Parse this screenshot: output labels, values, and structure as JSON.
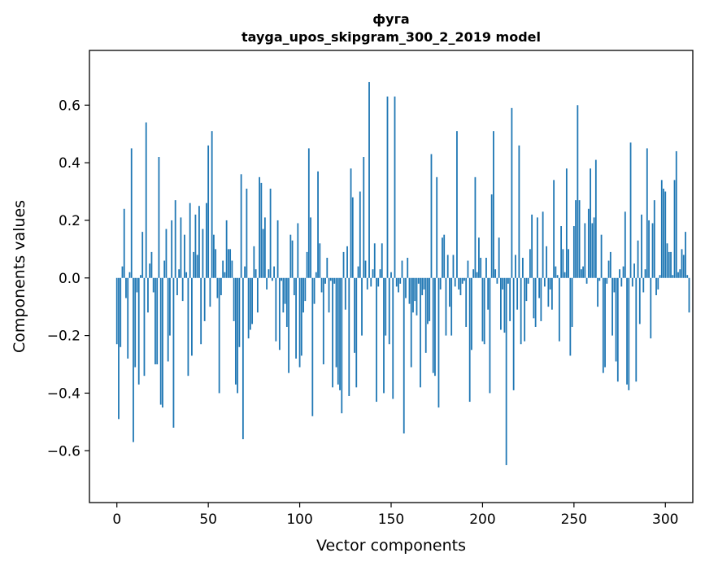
{
  "chart_data": {
    "type": "bar",
    "title": "фуга",
    "subtitle": "tayga_upos_skipgram_300_2_2019 model",
    "xlabel": "Vector components",
    "ylabel": "Components values",
    "xlim": [
      -15,
      315
    ],
    "ylim": [
      -0.78,
      0.79
    ],
    "xticks": [
      0,
      50,
      100,
      150,
      200,
      250,
      300
    ],
    "xtick_labels": [
      "0",
      "50",
      "100",
      "150",
      "200",
      "250",
      "300"
    ],
    "yticks": [
      -0.6,
      -0.4,
      -0.2,
      0.0,
      0.2,
      0.4,
      0.6
    ],
    "ytick_labels": [
      "−0.6",
      "−0.4",
      "−0.2",
      "0.0",
      "0.2",
      "0.4",
      "0.6"
    ],
    "bar_color": "#1f77b4",
    "grid": false,
    "values": [
      -0.23,
      -0.49,
      -0.24,
      0.04,
      0.24,
      -0.07,
      -0.28,
      0.02,
      0.45,
      -0.57,
      -0.31,
      -0.05,
      -0.37,
      0.01,
      0.16,
      -0.34,
      0.54,
      -0.12,
      0.05,
      0.09,
      -0.05,
      -0.3,
      -0.3,
      0.42,
      -0.44,
      -0.45,
      0.06,
      0.17,
      -0.29,
      -0.2,
      0.2,
      -0.52,
      0.27,
      -0.06,
      0.03,
      0.21,
      -0.08,
      0.15,
      0.02,
      -0.34,
      0.26,
      -0.27,
      0.09,
      0.22,
      0.08,
      0.25,
      -0.23,
      0.17,
      -0.15,
      0.26,
      0.46,
      -0.1,
      0.51,
      0.15,
      0.1,
      -0.07,
      -0.4,
      -0.06,
      0.06,
      0.02,
      0.2,
      0.1,
      0.1,
      0.06,
      -0.15,
      -0.37,
      -0.4,
      -0.24,
      0.36,
      -0.56,
      0.04,
      0.31,
      -0.21,
      -0.18,
      -0.16,
      0.11,
      0.03,
      -0.12,
      0.35,
      0.33,
      0.17,
      0.21,
      -0.04,
      0.03,
      0.31,
      -0.01,
      0.04,
      -0.22,
      0.2,
      -0.25,
      -0.01,
      -0.12,
      -0.09,
      -0.17,
      -0.33,
      0.15,
      0.13,
      -0.06,
      -0.28,
      0.19,
      -0.31,
      -0.27,
      -0.12,
      -0.08,
      0.09,
      0.45,
      0.21,
      -0.48,
      -0.09,
      0.02,
      0.37,
      0.12,
      -0.05,
      -0.3,
      -0.02,
      0.07,
      -0.12,
      -0.01,
      -0.38,
      -0.02,
      -0.31,
      -0.37,
      -0.39,
      -0.47,
      0.09,
      -0.11,
      0.11,
      -0.41,
      0.38,
      0.28,
      -0.26,
      -0.38,
      0.04,
      0.3,
      -0.2,
      0.42,
      0.06,
      -0.04,
      0.68,
      -0.03,
      0.03,
      0.12,
      -0.43,
      -0.03,
      0.03,
      0.12,
      -0.4,
      -0.2,
      0.63,
      -0.23,
      0.02,
      -0.42,
      0.63,
      -0.03,
      -0.05,
      -0.02,
      0.06,
      -0.54,
      -0.07,
      0.07,
      -0.09,
      -0.31,
      -0.12,
      -0.08,
      -0.13,
      -0.02,
      -0.38,
      -0.06,
      -0.04,
      -0.26,
      -0.16,
      -0.15,
      0.43,
      -0.33,
      -0.34,
      0.35,
      -0.45,
      -0.04,
      0.14,
      0.15,
      -0.2,
      0.08,
      -0.1,
      -0.2,
      0.08,
      -0.03,
      0.51,
      -0.04,
      -0.06,
      -0.02,
      -0.01,
      -0.17,
      0.06,
      -0.43,
      -0.25,
      0.03,
      0.35,
      0.02,
      0.14,
      0.07,
      -0.22,
      -0.23,
      0.07,
      -0.11,
      -0.4,
      0.29,
      0.51,
      0.03,
      -0.02,
      0.14,
      -0.18,
      -0.04,
      -0.19,
      -0.65,
      -0.02,
      -0.15,
      0.59,
      -0.39,
      0.08,
      -0.11,
      0.46,
      -0.23,
      0.07,
      -0.22,
      -0.08,
      -0.02,
      0.1,
      0.22,
      -0.14,
      -0.17,
      0.21,
      -0.07,
      -0.15,
      0.23,
      -0.03,
      0.11,
      -0.1,
      -0.04,
      -0.11,
      0.34,
      0.04,
      0.01,
      -0.22,
      0.18,
      0.1,
      0.02,
      0.38,
      0.1,
      -0.27,
      -0.17,
      0.18,
      0.27,
      0.6,
      0.27,
      0.03,
      0.04,
      0.19,
      -0.02,
      0.24,
      0.38,
      0.19,
      0.21,
      0.41,
      -0.1,
      -0.01,
      0.15,
      -0.33,
      -0.31,
      -0.02,
      0.06,
      0.09,
      -0.2,
      -0.05,
      -0.29,
      -0.36,
      0.03,
      -0.03,
      0.04,
      0.23,
      -0.37,
      -0.39,
      0.47,
      -0.03,
      0.05,
      -0.36,
      0.13,
      -0.16,
      0.22,
      -0.05,
      0.03,
      0.45,
      0.2,
      -0.21,
      0.19,
      0.27,
      -0.06,
      -0.04,
      0.01,
      0.34,
      0.31,
      0.3,
      0.12,
      0.09,
      0.09,
      0.01,
      0.34,
      0.44,
      0.02,
      0.03,
      0.1,
      0.08,
      0.16,
      0.01,
      -0.12
    ]
  }
}
